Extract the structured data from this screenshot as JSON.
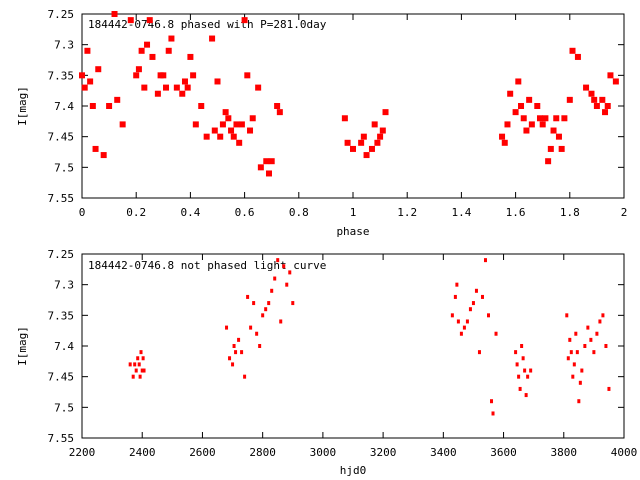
{
  "colors": {
    "marker": "#ff0000",
    "axis": "#000000",
    "background": "#ffffff"
  },
  "chart_data": [
    {
      "type": "scatter",
      "title": "184442-0746.8 phased with P=281.0day",
      "xlabel": "phase",
      "ylabel": "I[mag]",
      "xlim": [
        0,
        2
      ],
      "ylim": [
        7.55,
        7.25
      ],
      "y_inverted": true,
      "x_ticks": [
        "0",
        "0.2",
        "0.4",
        "0.6",
        "0.8",
        "1",
        "1.2",
        "1.4",
        "1.6",
        "1.8",
        "2"
      ],
      "y_ticks": [
        "7.25",
        "7.3",
        "7.35",
        "7.4",
        "7.45",
        "7.5",
        "7.55"
      ],
      "marker": "cross",
      "grid": false,
      "points": [
        [
          0.0,
          7.35
        ],
        [
          0.01,
          7.37
        ],
        [
          0.02,
          7.31
        ],
        [
          0.03,
          7.36
        ],
        [
          0.04,
          7.4
        ],
        [
          0.05,
          7.47
        ],
        [
          0.06,
          7.34
        ],
        [
          0.08,
          7.48
        ],
        [
          0.1,
          7.4
        ],
        [
          0.12,
          7.25
        ],
        [
          0.13,
          7.39
        ],
        [
          0.15,
          7.43
        ],
        [
          0.18,
          7.26
        ],
        [
          0.2,
          7.35
        ],
        [
          0.21,
          7.34
        ],
        [
          0.22,
          7.31
        ],
        [
          0.23,
          7.37
        ],
        [
          0.24,
          7.3
        ],
        [
          0.25,
          7.26
        ],
        [
          0.26,
          7.32
        ],
        [
          0.28,
          7.38
        ],
        [
          0.29,
          7.35
        ],
        [
          0.3,
          7.35
        ],
        [
          0.31,
          7.37
        ],
        [
          0.32,
          7.31
        ],
        [
          0.33,
          7.29
        ],
        [
          0.35,
          7.37
        ],
        [
          0.37,
          7.38
        ],
        [
          0.38,
          7.36
        ],
        [
          0.39,
          7.37
        ],
        [
          0.4,
          7.32
        ],
        [
          0.41,
          7.35
        ],
        [
          0.42,
          7.43
        ],
        [
          0.44,
          7.4
        ],
        [
          0.46,
          7.45
        ],
        [
          0.48,
          7.29
        ],
        [
          0.49,
          7.44
        ],
        [
          0.5,
          7.36
        ],
        [
          0.51,
          7.45
        ],
        [
          0.52,
          7.43
        ],
        [
          0.53,
          7.41
        ],
        [
          0.54,
          7.42
        ],
        [
          0.55,
          7.44
        ],
        [
          0.56,
          7.45
        ],
        [
          0.57,
          7.43
        ],
        [
          0.58,
          7.46
        ],
        [
          0.59,
          7.43
        ],
        [
          0.6,
          7.26
        ],
        [
          0.61,
          7.35
        ],
        [
          0.62,
          7.44
        ],
        [
          0.63,
          7.42
        ],
        [
          0.65,
          7.37
        ],
        [
          0.66,
          7.5
        ],
        [
          0.68,
          7.49
        ],
        [
          0.69,
          7.51
        ],
        [
          0.7,
          7.49
        ],
        [
          0.72,
          7.4
        ],
        [
          0.73,
          7.41
        ],
        [
          0.97,
          7.42
        ],
        [
          0.98,
          7.46
        ],
        [
          1.0,
          7.47
        ],
        [
          1.03,
          7.46
        ],
        [
          1.04,
          7.45
        ],
        [
          1.05,
          7.48
        ],
        [
          1.07,
          7.47
        ],
        [
          1.08,
          7.43
        ],
        [
          1.09,
          7.46
        ],
        [
          1.1,
          7.45
        ],
        [
          1.11,
          7.44
        ],
        [
          1.12,
          7.41
        ],
        [
          1.55,
          7.45
        ],
        [
          1.56,
          7.46
        ],
        [
          1.57,
          7.43
        ],
        [
          1.58,
          7.38
        ],
        [
          1.6,
          7.41
        ],
        [
          1.61,
          7.36
        ],
        [
          1.62,
          7.4
        ],
        [
          1.63,
          7.42
        ],
        [
          1.64,
          7.44
        ],
        [
          1.65,
          7.39
        ],
        [
          1.66,
          7.43
        ],
        [
          1.68,
          7.4
        ],
        [
          1.69,
          7.42
        ],
        [
          1.7,
          7.43
        ],
        [
          1.71,
          7.42
        ],
        [
          1.72,
          7.49
        ],
        [
          1.73,
          7.47
        ],
        [
          1.74,
          7.44
        ],
        [
          1.75,
          7.42
        ],
        [
          1.76,
          7.45
        ],
        [
          1.77,
          7.47
        ],
        [
          1.78,
          7.42
        ],
        [
          1.8,
          7.39
        ],
        [
          1.81,
          7.31
        ],
        [
          1.83,
          7.32
        ],
        [
          1.86,
          7.37
        ],
        [
          1.88,
          7.38
        ],
        [
          1.89,
          7.39
        ],
        [
          1.9,
          7.4
        ],
        [
          1.92,
          7.39
        ],
        [
          1.93,
          7.41
        ],
        [
          1.94,
          7.4
        ],
        [
          1.95,
          7.35
        ],
        [
          1.97,
          7.36
        ]
      ]
    },
    {
      "type": "scatter",
      "title": "184442-0746.8 not phased light curve",
      "xlabel": "hjd0",
      "ylabel": "I[mag]",
      "xlim": [
        2200,
        4000
      ],
      "ylim": [
        7.55,
        7.25
      ],
      "y_inverted": true,
      "x_ticks": [
        "2200",
        "2400",
        "2600",
        "2800",
        "3000",
        "3200",
        "3400",
        "3600",
        "3800",
        "4000"
      ],
      "y_ticks": [
        "7.25",
        "7.3",
        "7.35",
        "7.4",
        "7.45",
        "7.5",
        "7.55"
      ],
      "marker": "dot",
      "grid": false,
      "points": [
        [
          2360,
          7.43
        ],
        [
          2370,
          7.45
        ],
        [
          2375,
          7.43
        ],
        [
          2380,
          7.44
        ],
        [
          2385,
          7.42
        ],
        [
          2390,
          7.43
        ],
        [
          2393,
          7.45
        ],
        [
          2396,
          7.41
        ],
        [
          2400,
          7.44
        ],
        [
          2403,
          7.42
        ],
        [
          2406,
          7.44
        ],
        [
          2680,
          7.37
        ],
        [
          2690,
          7.42
        ],
        [
          2700,
          7.43
        ],
        [
          2705,
          7.4
        ],
        [
          2710,
          7.41
        ],
        [
          2720,
          7.39
        ],
        [
          2730,
          7.41
        ],
        [
          2740,
          7.45
        ],
        [
          2750,
          7.32
        ],
        [
          2760,
          7.37
        ],
        [
          2770,
          7.33
        ],
        [
          2780,
          7.38
        ],
        [
          2790,
          7.4
        ],
        [
          2800,
          7.35
        ],
        [
          2810,
          7.34
        ],
        [
          2820,
          7.33
        ],
        [
          2830,
          7.31
        ],
        [
          2840,
          7.29
        ],
        [
          2850,
          7.26
        ],
        [
          2860,
          7.36
        ],
        [
          2870,
          7.27
        ],
        [
          2880,
          7.3
        ],
        [
          2890,
          7.28
        ],
        [
          2900,
          7.33
        ],
        [
          3430,
          7.35
        ],
        [
          3440,
          7.32
        ],
        [
          3445,
          7.3
        ],
        [
          3450,
          7.36
        ],
        [
          3460,
          7.38
        ],
        [
          3470,
          7.37
        ],
        [
          3480,
          7.36
        ],
        [
          3490,
          7.34
        ],
        [
          3500,
          7.33
        ],
        [
          3510,
          7.31
        ],
        [
          3520,
          7.41
        ],
        [
          3530,
          7.32
        ],
        [
          3540,
          7.26
        ],
        [
          3550,
          7.35
        ],
        [
          3560,
          7.49
        ],
        [
          3565,
          7.51
        ],
        [
          3575,
          7.38
        ],
        [
          3640,
          7.41
        ],
        [
          3645,
          7.43
        ],
        [
          3650,
          7.45
        ],
        [
          3655,
          7.47
        ],
        [
          3660,
          7.4
        ],
        [
          3665,
          7.42
        ],
        [
          3670,
          7.44
        ],
        [
          3675,
          7.48
        ],
        [
          3680,
          7.45
        ],
        [
          3690,
          7.44
        ],
        [
          3810,
          7.35
        ],
        [
          3815,
          7.42
        ],
        [
          3820,
          7.39
        ],
        [
          3825,
          7.41
        ],
        [
          3830,
          7.45
        ],
        [
          3835,
          7.43
        ],
        [
          3840,
          7.38
        ],
        [
          3845,
          7.41
        ],
        [
          3850,
          7.49
        ],
        [
          3855,
          7.46
        ],
        [
          3860,
          7.44
        ],
        [
          3870,
          7.4
        ],
        [
          3880,
          7.37
        ],
        [
          3890,
          7.39
        ],
        [
          3900,
          7.41
        ],
        [
          3910,
          7.38
        ],
        [
          3920,
          7.36
        ],
        [
          3930,
          7.35
        ],
        [
          3940,
          7.4
        ],
        [
          3950,
          7.47
        ]
      ]
    }
  ]
}
